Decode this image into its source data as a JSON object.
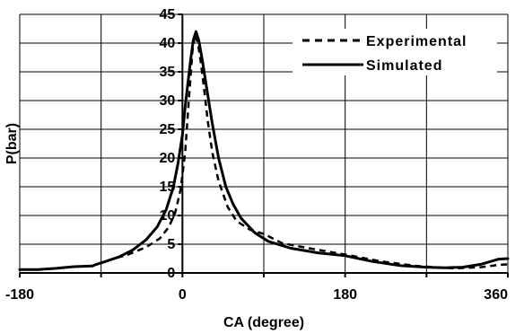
{
  "chart_data": {
    "type": "line",
    "title": "",
    "xlabel": "CA (degree)",
    "ylabel": "P(bar)",
    "xlim": [
      -180,
      360
    ],
    "ylim": [
      0,
      45
    ],
    "x_ticks": [
      -180,
      0,
      180,
      360
    ],
    "x_gridlines": [
      -180,
      -90,
      0,
      90,
      180,
      270,
      360
    ],
    "y_ticks": [
      0,
      5,
      10,
      15,
      20,
      25,
      30,
      35,
      40,
      45
    ],
    "grid": true,
    "legend_position": "top-right",
    "series": [
      {
        "name": "Experimental",
        "style": "dashed",
        "color": "#000000",
        "x": [
          -95,
          -80,
          -60,
          -40,
          -25,
          -15,
          -8,
          -2,
          3,
          7,
          11,
          14,
          17,
          20,
          24,
          28,
          33,
          40,
          50,
          60,
          75,
          90,
          110,
          140,
          180,
          220,
          260,
          300,
          330,
          350,
          360
        ],
        "y": [
          1.5,
          2.3,
          3.2,
          4.5,
          6.0,
          8.0,
          10.5,
          14.5,
          21.0,
          30.0,
          38.5,
          41.5,
          40.0,
          37.0,
          32.0,
          26.5,
          21.0,
          16.0,
          11.5,
          9.0,
          7.5,
          6.8,
          5.2,
          4.3,
          3.2,
          2.0,
          1.2,
          0.8,
          1.0,
          1.4,
          1.5
        ]
      },
      {
        "name": "Simulated",
        "style": "solid",
        "color": "#000000",
        "x": [
          -180,
          -160,
          -140,
          -120,
          -100,
          -95,
          -85,
          -70,
          -55,
          -40,
          -28,
          -18,
          -10,
          -5,
          0,
          3,
          6,
          9,
          12,
          15,
          18,
          22,
          27,
          33,
          40,
          48,
          56,
          65,
          80,
          95,
          120,
          150,
          180,
          210,
          240,
          270,
          290,
          310,
          330,
          350,
          360
        ],
        "y": [
          0.6,
          0.6,
          0.8,
          1.1,
          1.2,
          1.5,
          2.0,
          2.8,
          4.0,
          5.8,
          8.0,
          11.0,
          15.0,
          19.0,
          24.0,
          29.0,
          33.0,
          37.0,
          40.5,
          42.0,
          40.5,
          37.0,
          32.0,
          26.0,
          20.0,
          15.0,
          12.0,
          9.5,
          7.0,
          5.5,
          4.3,
          3.5,
          3.0,
          2.0,
          1.3,
          1.0,
          0.9,
          1.0,
          1.5,
          2.4,
          2.5
        ]
      }
    ]
  }
}
